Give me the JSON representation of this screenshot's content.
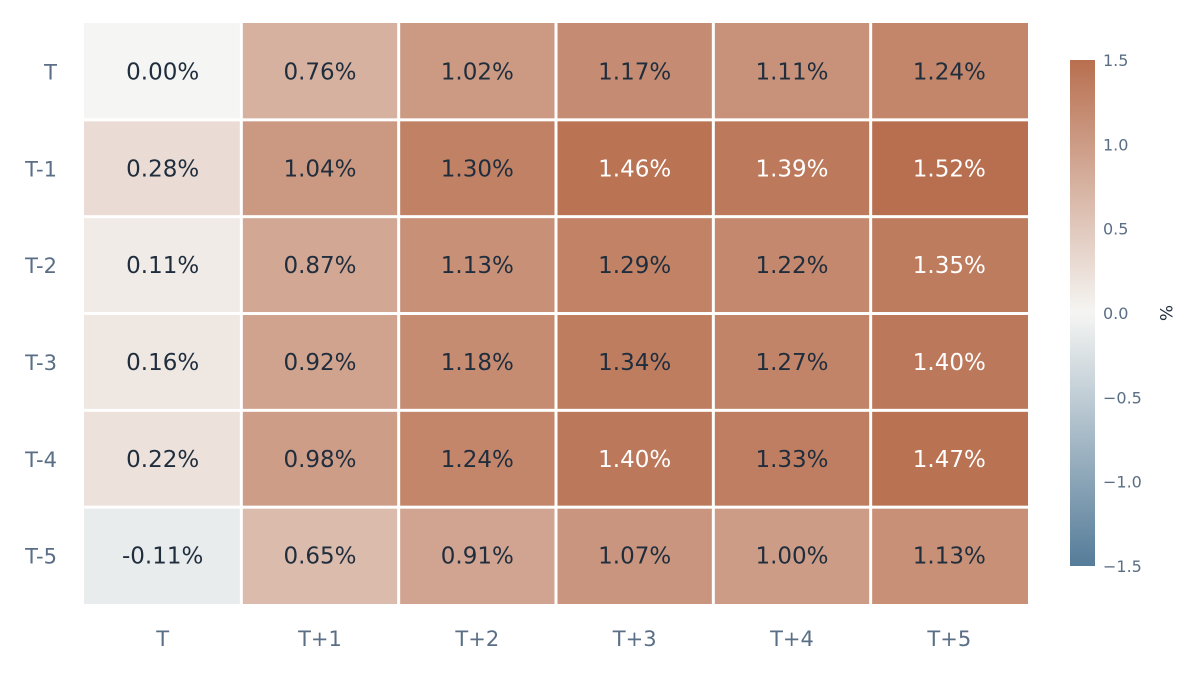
{
  "chart_data": {
    "type": "heatmap",
    "x_categories": [
      "T",
      "T+1",
      "T+2",
      "T+3",
      "T+4",
      "T+5"
    ],
    "y_categories": [
      "T",
      "T-1",
      "T-2",
      "T-3",
      "T-4",
      "T-5"
    ],
    "values": [
      [
        0.0,
        0.76,
        1.02,
        1.17,
        1.11,
        1.24
      ],
      [
        0.28,
        1.04,
        1.3,
        1.46,
        1.39,
        1.52
      ],
      [
        0.11,
        0.87,
        1.13,
        1.29,
        1.22,
        1.35
      ],
      [
        0.16,
        0.92,
        1.18,
        1.34,
        1.27,
        1.4
      ],
      [
        0.22,
        0.98,
        1.24,
        1.4,
        1.33,
        1.47
      ],
      [
        -0.11,
        0.65,
        0.91,
        1.07,
        1.0,
        1.13
      ]
    ],
    "cell_labels": [
      [
        "0.00%",
        "0.76%",
        "1.02%",
        "1.17%",
        "1.11%",
        "1.24%"
      ],
      [
        "0.28%",
        "1.04%",
        "1.30%",
        "1.46%",
        "1.39%",
        "1.52%"
      ],
      [
        "0.11%",
        "0.87%",
        "1.13%",
        "1.29%",
        "1.22%",
        "1.35%"
      ],
      [
        "0.16%",
        "0.92%",
        "1.18%",
        "1.34%",
        "1.27%",
        "1.40%"
      ],
      [
        "0.22%",
        "0.98%",
        "1.24%",
        "1.40%",
        "1.33%",
        "1.47%"
      ],
      [
        "-0.11%",
        "0.65%",
        "0.91%",
        "1.07%",
        "1.00%",
        "1.13%"
      ]
    ],
    "colorbar": {
      "title": "%",
      "range": [
        -1.5,
        1.5
      ],
      "ticks": [
        1.5,
        1.0,
        0.5,
        0.0,
        -0.5,
        -1.0,
        -1.5
      ],
      "tick_labels": [
        "1.5",
        "1.0",
        "0.5",
        "0.0",
        "−0.5",
        "−1.0",
        "−1.5"
      ],
      "colors": {
        "low": "#557c99",
        "mid": "#f5f5f3",
        "high": "#b86f4f"
      }
    },
    "text_colors": {
      "dark": "#1f2d3d",
      "light": "#ffffff"
    },
    "axis_label_color": "#5a6e85",
    "grid": false,
    "legend": "right"
  }
}
